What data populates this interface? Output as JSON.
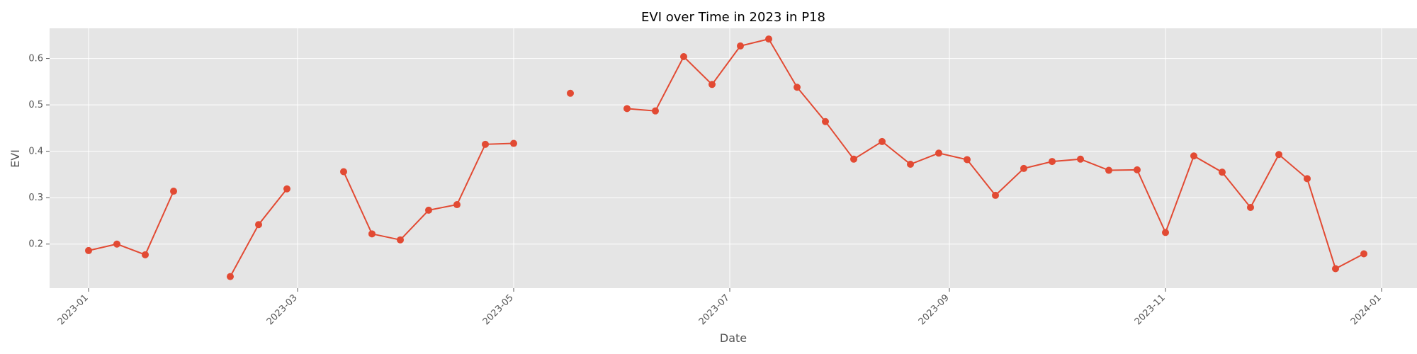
{
  "chart_data": {
    "type": "line",
    "title": "EVI over Time in 2023 in P18",
    "xlabel": "Date",
    "ylabel": "EVI",
    "grid": true,
    "legend": "none",
    "colors": {
      "series": "#E24A33",
      "plot_bg": "#E5E5E5",
      "grid": "#FFFFFF"
    },
    "xlim": [
      "2022-12-21",
      "2024-01-11"
    ],
    "ylim": [
      0.105,
      0.665
    ],
    "x_ticks": [
      "2023-01-01",
      "2023-03-01",
      "2023-05-01",
      "2023-07-01",
      "2023-09-01",
      "2023-11-01",
      "2024-01-01"
    ],
    "x_tick_labels": [
      "2023-01",
      "2023-03",
      "2023-05",
      "2023-07",
      "2023-09",
      "2023-11",
      "2024-01"
    ],
    "y_ticks": [
      0.2,
      0.3,
      0.4,
      0.5,
      0.6
    ],
    "y_tick_labels": [
      "0.2",
      "0.3",
      "0.4",
      "0.5",
      "0.6"
    ],
    "series": [
      {
        "x": [
          "2023-01-01",
          "2023-01-09",
          "2023-01-17",
          "2023-01-25",
          "2023-02-02",
          "2023-02-10",
          "2023-02-18",
          "2023-02-26",
          "2023-03-06",
          "2023-03-14",
          "2023-03-22",
          "2023-03-30",
          "2023-04-07",
          "2023-04-15",
          "2023-04-23",
          "2023-05-01",
          "2023-05-09",
          "2023-05-17",
          "2023-05-25",
          "2023-06-02",
          "2023-06-10",
          "2023-06-18",
          "2023-06-26",
          "2023-07-04",
          "2023-07-12",
          "2023-07-20",
          "2023-07-28",
          "2023-08-05",
          "2023-08-13",
          "2023-08-21",
          "2023-08-29",
          "2023-09-06",
          "2023-09-14",
          "2023-09-22",
          "2023-09-30",
          "2023-10-08",
          "2023-10-16",
          "2023-10-24",
          "2023-11-01",
          "2023-11-09",
          "2023-11-17",
          "2023-11-25",
          "2023-12-03",
          "2023-12-11",
          "2023-12-19",
          "2023-12-27"
        ],
        "values": [
          0.186,
          0.2,
          0.177,
          0.314,
          null,
          0.13,
          0.242,
          0.319,
          null,
          0.356,
          0.222,
          0.209,
          0.273,
          0.285,
          0.415,
          0.417,
          null,
          0.525,
          null,
          0.492,
          0.487,
          0.604,
          0.544,
          0.627,
          0.642,
          0.538,
          0.464,
          0.383,
          0.421,
          0.372,
          0.396,
          0.382,
          0.305,
          0.363,
          0.378,
          0.383,
          0.359,
          0.36,
          0.225,
          0.39,
          0.355,
          0.279,
          0.393,
          0.341,
          0.147,
          0.179
        ]
      }
    ]
  }
}
